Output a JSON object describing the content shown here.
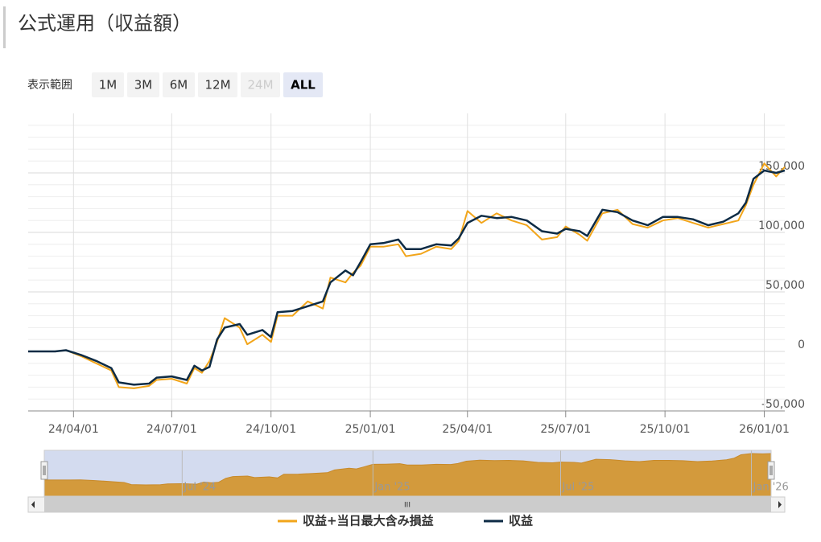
{
  "header": {
    "title": "公式運用（収益額）"
  },
  "range_selector": {
    "label": "表示範囲",
    "buttons": [
      "1M",
      "3M",
      "6M",
      "12M",
      "24M",
      "ALL"
    ],
    "selected": 5,
    "disabled": [
      4
    ]
  },
  "chart_data": {
    "type": "line",
    "x": [
      "2024-02-19",
      "2024-03-15",
      "2024-03-25",
      "2024-04-08",
      "2024-04-22",
      "2024-05-06",
      "2024-05-13",
      "2024-05-27",
      "2024-06-10",
      "2024-06-17",
      "2024-07-01",
      "2024-07-15",
      "2024-07-22",
      "2024-07-29",
      "2024-08-05",
      "2024-08-12",
      "2024-08-19",
      "2024-09-02",
      "2024-09-09",
      "2024-09-23",
      "2024-10-01",
      "2024-10-07",
      "2024-10-21",
      "2024-11-04",
      "2024-11-18",
      "2024-11-25",
      "2024-12-09",
      "2024-12-16",
      "2024-12-23",
      "2025-01-01",
      "2025-01-13",
      "2025-01-27",
      "2025-02-03",
      "2025-02-17",
      "2025-03-03",
      "2025-03-17",
      "2025-03-24",
      "2025-04-01",
      "2025-04-14",
      "2025-04-28",
      "2025-05-12",
      "2025-05-26",
      "2025-06-09",
      "2025-06-23",
      "2025-07-01",
      "2025-07-14",
      "2025-07-21",
      "2025-08-04",
      "2025-08-18",
      "2025-09-01",
      "2025-09-15",
      "2025-09-29",
      "2025-10-13",
      "2025-10-27",
      "2025-11-10",
      "2025-11-24",
      "2025-12-08",
      "2025-12-15",
      "2025-12-22",
      "2026-01-01",
      "2026-01-12",
      "2026-01-20"
    ],
    "series": [
      {
        "name": "収益+当日最大含み損益",
        "color": "#f2a51a",
        "values": [
          0,
          0,
          1000,
          -4000,
          -10000,
          -16000,
          -30000,
          -31000,
          -29000,
          -24000,
          -23000,
          -27000,
          -14000,
          -18000,
          -8000,
          8000,
          28000,
          20000,
          6000,
          14000,
          8000,
          30000,
          30000,
          42000,
          36000,
          62000,
          58000,
          66000,
          72000,
          88000,
          88000,
          90000,
          80000,
          82000,
          88000,
          86000,
          93000,
          118000,
          108000,
          116000,
          110000,
          106000,
          94000,
          96000,
          105000,
          98000,
          93000,
          116000,
          119000,
          107000,
          104000,
          110000,
          112000,
          108000,
          104000,
          107000,
          110000,
          123000,
          140000,
          158000,
          147000,
          155000
        ]
      },
      {
        "name": "収益",
        "color": "#0d2b45",
        "values": [
          0,
          0,
          1000,
          -3000,
          -8000,
          -14000,
          -26000,
          -28000,
          -27000,
          -22000,
          -21000,
          -24000,
          -12000,
          -16000,
          -13000,
          10000,
          20000,
          23000,
          14000,
          18000,
          12000,
          33000,
          34000,
          38000,
          42000,
          58000,
          68000,
          64000,
          75000,
          90000,
          91000,
          94000,
          86000,
          86000,
          90000,
          89000,
          95000,
          108000,
          114000,
          112000,
          113000,
          110000,
          101000,
          99000,
          103000,
          101000,
          97000,
          119000,
          117000,
          110000,
          106000,
          113000,
          113000,
          111000,
          106000,
          109000,
          116000,
          125000,
          145000,
          152000,
          150000,
          152000
        ]
      }
    ],
    "xlim": [
      "2024-02-19",
      "2026-01-20"
    ],
    "xticks": [
      {
        "value": "2024-04-01",
        "label": "24/04/01"
      },
      {
        "value": "2024-07-01",
        "label": "24/07/01"
      },
      {
        "value": "2024-10-01",
        "label": "24/10/01"
      },
      {
        "value": "2025-01-01",
        "label": "25/01/01"
      },
      {
        "value": "2025-04-01",
        "label": "25/04/01"
      },
      {
        "value": "2025-07-01",
        "label": "25/07/01"
      },
      {
        "value": "2025-10-01",
        "label": "25/10/01"
      },
      {
        "value": "2026-01-01",
        "label": "26/01/01"
      }
    ],
    "ylim": [
      -50000,
      200000
    ],
    "yticks": [
      {
        "value": -50000,
        "label": "-50,000"
      },
      0,
      {
        "value": 50000,
        "label": "50,000"
      },
      {
        "value": 100000,
        "label": "100,000"
      },
      {
        "value": 150000,
        "label": "150,000"
      }
    ],
    "grid": true,
    "legend": "bottom"
  },
  "navigator": {
    "xticks": [
      {
        "value": "2024-07-01",
        "label": "Jul '24"
      },
      {
        "value": "2025-01-01",
        "label": "Jan '25"
      },
      {
        "value": "2025-07-01",
        "label": "Jul '25"
      },
      {
        "value": "2026-01-01",
        "label": "Jan '26"
      }
    ],
    "scrollbar_label": "III"
  }
}
